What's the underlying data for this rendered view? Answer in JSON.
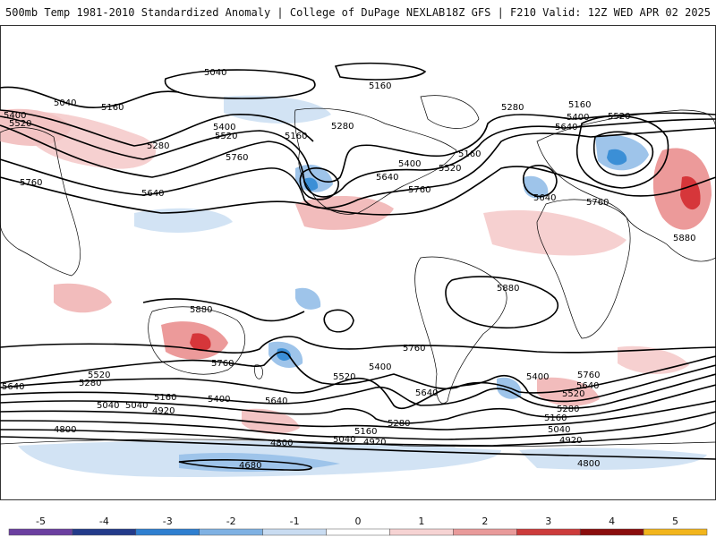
{
  "header": {
    "title": "500mb Temp 1981-2010 Standardized Anomaly | College of DuPage NEXLAB",
    "run_info": "18Z GFS | F210 Valid: 12Z WED APR 02 2025"
  },
  "map": {
    "contour_labels": [
      "5040",
      "5160",
      "5040",
      "5160",
      "5400",
      "5520",
      "5280",
      "5400",
      "5520",
      "5160",
      "5280",
      "5760",
      "5640",
      "5760",
      "5400",
      "5640",
      "5520",
      "5160",
      "5760",
      "5640",
      "5280",
      "5160",
      "5400",
      "5520",
      "5640",
      "5760",
      "5880",
      "5880",
      "5880",
      "5760",
      "5760",
      "5640",
      "5520",
      "5400",
      "5400",
      "5640",
      "5640",
      "5520",
      "5400",
      "5280",
      "5160",
      "5040",
      "4920",
      "4800",
      "5640",
      "5280",
      "5160",
      "5040",
      "4920",
      "4800",
      "4680",
      "5040",
      "4920",
      "5160",
      "5280",
      "5040",
      "4920",
      "5160",
      "5280",
      "5520",
      "5640",
      "5760",
      "4800"
    ],
    "colors": {
      "contour": "#000000",
      "coastline": "#000000",
      "warm_light": "#f6d0d0",
      "warm_medium": "#ec9a9a",
      "warm_strong": "#d6363a",
      "cold_light": "#d2e3f4",
      "cold_medium": "#9ec4ea",
      "cold_strong": "#3b8fd6"
    }
  },
  "legend": {
    "ticks": [
      "-5",
      "-4",
      "-3",
      "-2",
      "-1",
      "0",
      "1",
      "2",
      "3",
      "4",
      "5"
    ],
    "colors": [
      "#6b3fa0",
      "#233a8a",
      "#2f7fd0",
      "#7fb1e3",
      "#c9dcf1",
      "#ffffff",
      "#f6d3d3",
      "#e89a9a",
      "#cc3b3b",
      "#8a0d0d",
      "#f2b51c"
    ]
  }
}
